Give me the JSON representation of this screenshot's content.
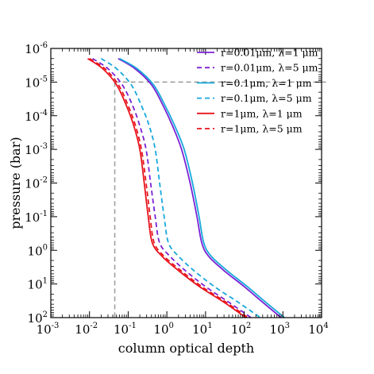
{
  "chart_data": {
    "type": "line",
    "xlabel": "column optical depth",
    "ylabel": "pressure (bar)",
    "x_scale": "log",
    "y_scale": "log",
    "xlim": [
      0.001,
      10000
    ],
    "ylim": [
      100,
      1e-06
    ],
    "y_inverted": true,
    "grid": false,
    "legend_position": "top-right",
    "x_ticks": [
      {
        "base": "10",
        "exp": "-3"
      },
      {
        "base": "10",
        "exp": "-2"
      },
      {
        "base": "10",
        "exp": "-1"
      },
      {
        "base": "10",
        "exp": "0"
      },
      {
        "base": "10",
        "exp": "1"
      },
      {
        "base": "10",
        "exp": "2"
      },
      {
        "base": "10",
        "exp": "3"
      },
      {
        "base": "10",
        "exp": "4"
      }
    ],
    "y_ticks": [
      {
        "base": "10",
        "exp": "-6"
      },
      {
        "base": "10",
        "exp": "-5"
      },
      {
        "base": "10",
        "exp": "-4"
      },
      {
        "base": "10",
        "exp": "-3"
      },
      {
        "base": "10",
        "exp": "-2"
      },
      {
        "base": "10",
        "exp": "-1"
      },
      {
        "base": "10",
        "exp": "0"
      },
      {
        "base": "10",
        "exp": "1"
      },
      {
        "base": "10",
        "exp": "2"
      }
    ],
    "reference_lines": {
      "vertical_x": 0.045,
      "horizontal_y": 1e-05,
      "color": "#999999"
    },
    "series": [
      {
        "name": "r=0.01μm, λ=1 μm",
        "color": "#7b22d6",
        "dash": "solid",
        "x": [
          0.055,
          0.15,
          0.4,
          0.8,
          1.4,
          2.4,
          4.0,
          6.0,
          8.0,
          12,
          30,
          100,
          300,
          900
        ],
        "y": [
          2e-06,
          4e-06,
          1.2e-05,
          5e-05,
          0.0002,
          0.001,
          0.01,
          0.1,
          0.6,
          1.5,
          4,
          12,
          35,
          100
        ]
      },
      {
        "name": "r=0.01μm, λ=5 μm",
        "color": "#7b22d6",
        "dash": "dashed",
        "x": [
          0.012,
          0.03,
          0.07,
          0.13,
          0.2,
          0.29,
          0.38,
          0.5,
          0.65,
          1.2,
          3,
          10,
          40,
          150
        ],
        "y": [
          2e-06,
          4e-06,
          1.2e-05,
          5e-05,
          0.0002,
          0.001,
          0.01,
          0.1,
          0.6,
          1.5,
          4,
          12,
          35,
          100
        ]
      },
      {
        "name": "r=0.1μm, λ=1 μm",
        "color": "#17a8dc",
        "dash": "solid",
        "x": [
          0.06,
          0.17,
          0.45,
          0.9,
          1.6,
          2.8,
          4.6,
          6.8,
          9.0,
          14,
          36,
          120,
          360,
          1100
        ],
        "y": [
          2e-06,
          4e-06,
          1.2e-05,
          5e-05,
          0.0002,
          0.001,
          0.01,
          0.1,
          0.6,
          1.5,
          4,
          12,
          35,
          100
        ]
      },
      {
        "name": "r=0.1μm, λ=5 μm",
        "color": "#17a8dc",
        "dash": "dashed",
        "x": [
          0.02,
          0.05,
          0.12,
          0.22,
          0.35,
          0.5,
          0.65,
          0.85,
          1.1,
          2.0,
          5,
          17,
          70,
          260
        ],
        "y": [
          2e-06,
          4e-06,
          1.2e-05,
          5e-05,
          0.0002,
          0.001,
          0.01,
          0.1,
          0.6,
          1.5,
          4,
          12,
          35,
          100
        ]
      },
      {
        "name": "r=1μm, λ=1 μm",
        "color": "#e8141c",
        "dash": "solid",
        "x": [
          0.009,
          0.022,
          0.05,
          0.09,
          0.14,
          0.2,
          0.26,
          0.33,
          0.42,
          0.75,
          2,
          7,
          30,
          110
        ],
        "y": [
          2e-06,
          4e-06,
          1.2e-05,
          5e-05,
          0.0002,
          0.001,
          0.01,
          0.1,
          0.6,
          1.5,
          4,
          12,
          35,
          100
        ]
      },
      {
        "name": "r=1μm, λ=5 μm",
        "color": "#e8141c",
        "dash": "dashed",
        "x": [
          0.01,
          0.025,
          0.056,
          0.1,
          0.155,
          0.22,
          0.29,
          0.37,
          0.47,
          0.85,
          2.3,
          8,
          34,
          125
        ],
        "y": [
          2e-06,
          4e-06,
          1.2e-05,
          5e-05,
          0.0002,
          0.001,
          0.01,
          0.1,
          0.6,
          1.5,
          4,
          12,
          35,
          100
        ]
      }
    ]
  }
}
